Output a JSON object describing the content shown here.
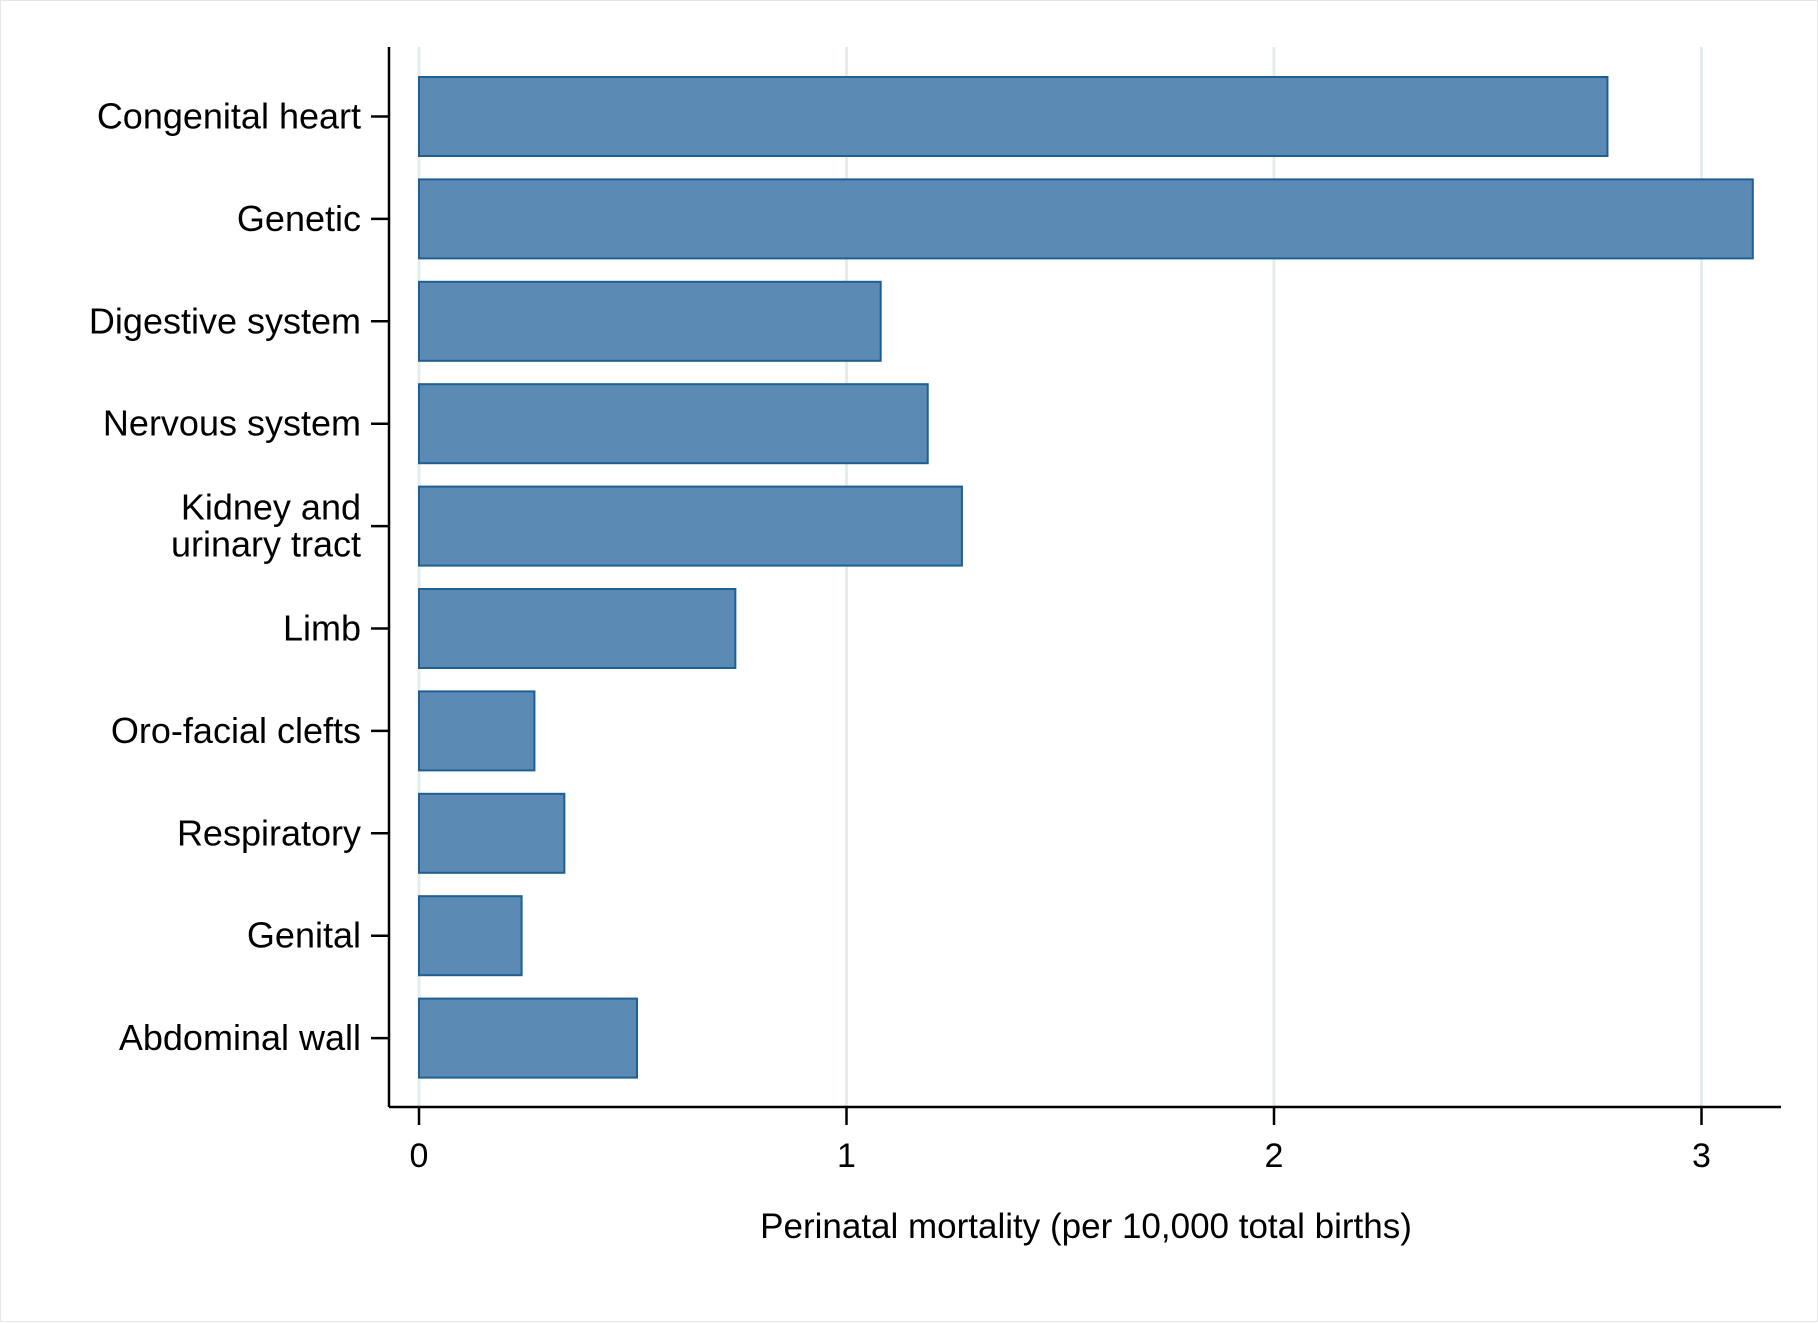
{
  "chart_data": {
    "type": "bar",
    "orientation": "horizontal",
    "categories": [
      [
        "Congenital heart"
      ],
      [
        "Genetic"
      ],
      [
        "Digestive system"
      ],
      [
        "Nervous system"
      ],
      [
        "Kidney and",
        "urinary tract"
      ],
      [
        "Limb"
      ],
      [
        "Oro-facial clefts"
      ],
      [
        "Respiratory"
      ],
      [
        "Genital"
      ],
      [
        "Abdominal wall"
      ]
    ],
    "values": [
      2.78,
      3.12,
      1.08,
      1.19,
      1.27,
      0.74,
      0.27,
      0.34,
      0.24,
      0.51
    ],
    "xlabel": "Perinatal mortality (per 10,000 total births)",
    "xlim": [
      0,
      3.15
    ],
    "xticks": [
      "0",
      "1",
      "2",
      "3"
    ],
    "grid": true,
    "colors": {
      "bar_fill": "#5b8bb5",
      "bar_stroke": "#1f5f91",
      "grid": "#e4ecef",
      "axis": "#000000"
    }
  }
}
